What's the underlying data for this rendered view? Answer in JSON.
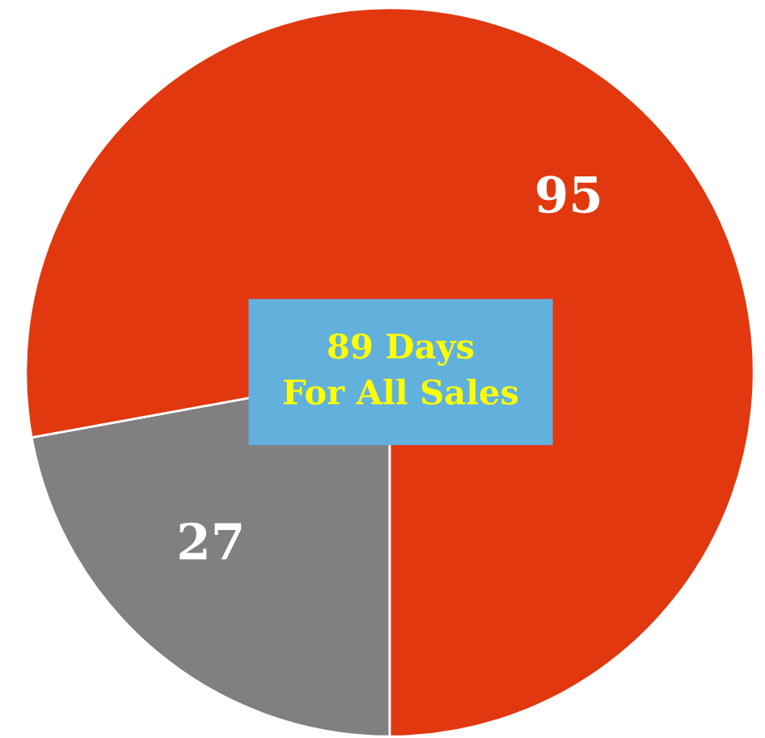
{
  "chart_data": {
    "type": "pie",
    "categories": [
      null,
      null
    ],
    "values": [
      27,
      95
    ],
    "colors": [
      "#808080",
      "#e2380f"
    ],
    "data_labels": true,
    "annotations": [
      "89 Days\nFor All Sales"
    ]
  }
}
